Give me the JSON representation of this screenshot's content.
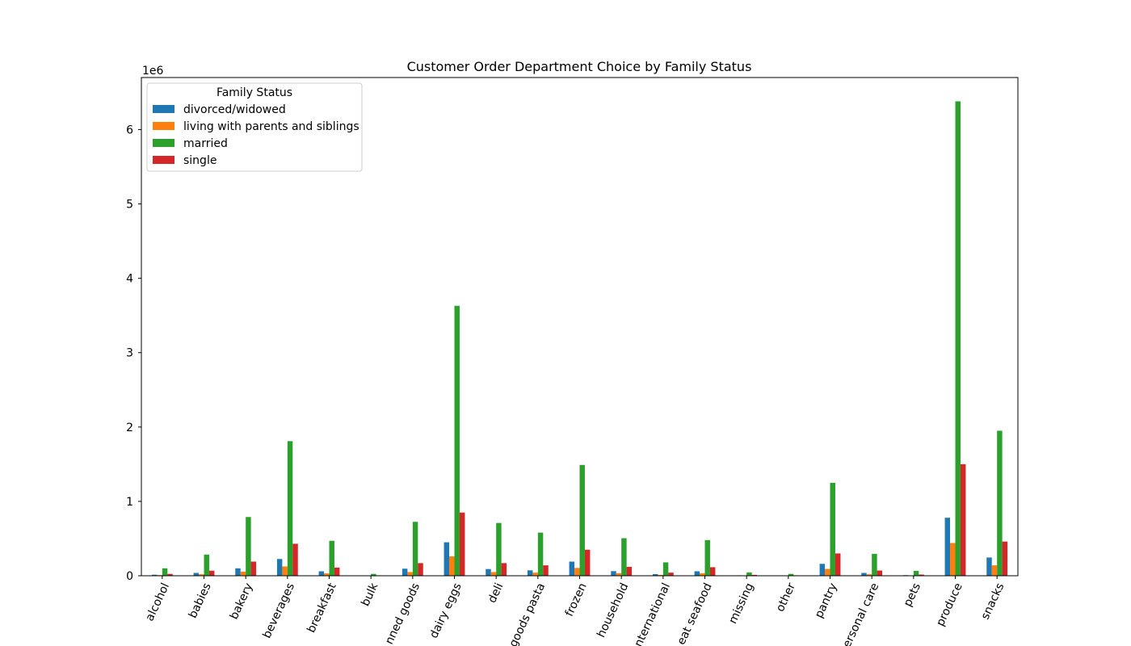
{
  "chart_data": {
    "type": "bar",
    "title": "Customer Order Department Choice by Family Status",
    "xlabel": "",
    "ylabel": "",
    "y_offset_label": "1e6",
    "ylim": [
      0,
      6700000
    ],
    "yticks": [
      0,
      1000000,
      2000000,
      3000000,
      4000000,
      5000000,
      6000000
    ],
    "ytick_labels": [
      "0",
      "1",
      "2",
      "3",
      "4",
      "5",
      "6"
    ],
    "categories": [
      "alcohol",
      "babies",
      "bakery",
      "beverages",
      "breakfast",
      "bulk",
      "canned goods",
      "dairy eggs",
      "deli",
      "dry goods pasta",
      "frozen",
      "household",
      "international",
      "meat seafood",
      "missing",
      "other",
      "pantry",
      "personal care",
      "pets",
      "produce",
      "snacks"
    ],
    "category_labels_visible": [
      "alcohol",
      "babies",
      "bakery",
      "beverages",
      "breakfast",
      "bulk",
      "nned goods",
      "dairy eggs",
      "deli",
      "goods pasta",
      "frozen",
      "household",
      "nternational",
      "eat seafood",
      "missing",
      "other",
      "pantry",
      "ersonal care",
      "pets",
      "produce",
      "snacks"
    ],
    "legend": {
      "title": "Family Status",
      "placement": "upper-left"
    },
    "grid": false,
    "series": [
      {
        "name": "divorced/widowed",
        "color": "#1f77b4",
        "values": [
          14000,
          38000,
          100000,
          225000,
          60000,
          3000,
          95000,
          450000,
          90000,
          73000,
          190000,
          62000,
          22000,
          60000,
          6000,
          3000,
          160000,
          38000,
          8000,
          780000,
          245000
        ]
      },
      {
        "name": "living with parents and siblings",
        "color": "#ff7f0e",
        "values": [
          9000,
          20000,
          55000,
          125000,
          32000,
          2000,
          50000,
          260000,
          50000,
          42000,
          105000,
          35000,
          12000,
          34000,
          3000,
          2000,
          92000,
          20000,
          5000,
          440000,
          140000
        ]
      },
      {
        "name": "married",
        "color": "#2ca02c",
        "values": [
          100000,
          285000,
          790000,
          1810000,
          470000,
          25000,
          725000,
          3630000,
          710000,
          580000,
          1490000,
          505000,
          180000,
          480000,
          45000,
          25000,
          1250000,
          295000,
          65000,
          6380000,
          1950000
        ]
      },
      {
        "name": "single",
        "color": "#d62728",
        "values": [
          25000,
          68000,
          190000,
          430000,
          110000,
          6000,
          170000,
          850000,
          170000,
          140000,
          350000,
          120000,
          42000,
          115000,
          12000,
          6000,
          300000,
          70000,
          16000,
          1500000,
          460000
        ]
      }
    ]
  }
}
